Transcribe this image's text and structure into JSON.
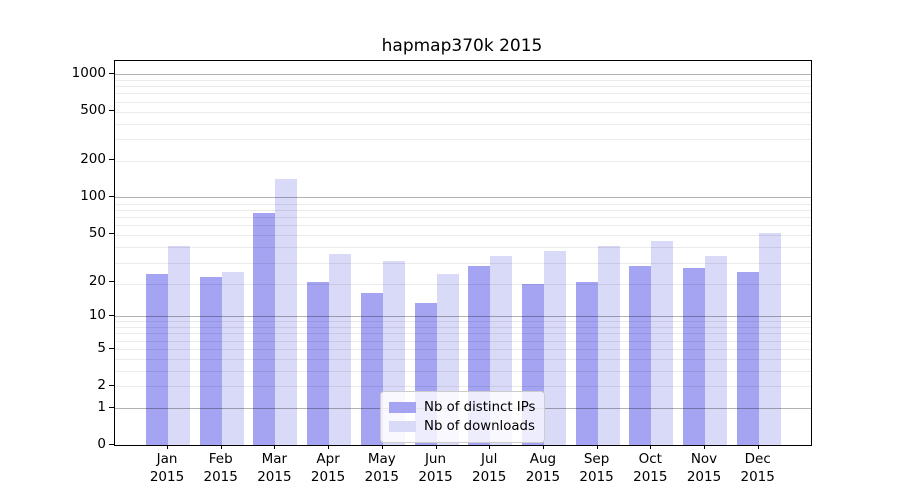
{
  "chart_data": {
    "type": "bar",
    "title": "hapmap370k 2015",
    "xlabel": "",
    "ylabel": "",
    "yscale": "log1p",
    "ylim": [
      0,
      1280
    ],
    "y_ticks": [
      0,
      1,
      2,
      5,
      10,
      20,
      50,
      100,
      200,
      500,
      1000
    ],
    "grid_major_values": [
      1,
      10,
      100,
      1000
    ],
    "grid_minor_values": [
      2,
      3,
      4,
      5,
      6,
      7,
      8,
      9,
      19,
      29,
      39,
      49,
      59,
      69,
      79,
      89,
      199,
      299,
      399,
      499,
      599,
      699,
      799,
      899
    ],
    "legend_position": "lower center",
    "x_tick_labels": [
      {
        "top": "Jan",
        "bottom": "2015"
      },
      {
        "top": "Feb",
        "bottom": "2015"
      },
      {
        "top": "Mar",
        "bottom": "2015"
      },
      {
        "top": "Apr",
        "bottom": "2015"
      },
      {
        "top": "May",
        "bottom": "2015"
      },
      {
        "top": "Jun",
        "bottom": "2015"
      },
      {
        "top": "Jul",
        "bottom": "2015"
      },
      {
        "top": "Aug",
        "bottom": "2015"
      },
      {
        "top": "Sep",
        "bottom": "2015"
      },
      {
        "top": "Oct",
        "bottom": "2015"
      },
      {
        "top": "Nov",
        "bottom": "2015"
      },
      {
        "top": "Dec",
        "bottom": "2015"
      }
    ],
    "series": [
      {
        "name": "Nb of distinct IPs",
        "color": "#a4a4f2",
        "values": [
          23,
          22,
          75,
          20,
          16,
          13,
          27,
          19,
          20,
          27,
          26,
          24
        ]
      },
      {
        "name": "Nb of downloads",
        "color": "#d9d9f8",
        "values": [
          40,
          24,
          140,
          34,
          30,
          23,
          33,
          36,
          40,
          44,
          33,
          51
        ]
      }
    ]
  }
}
